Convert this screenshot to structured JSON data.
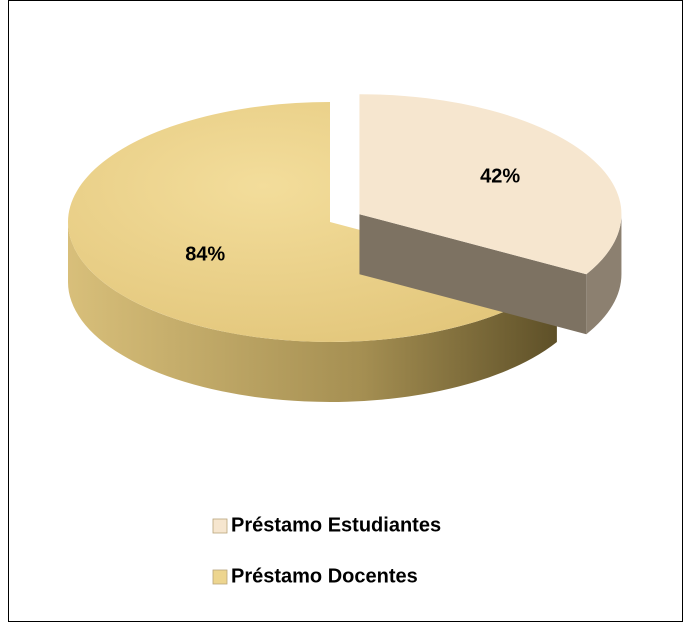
{
  "chart_data": {
    "type": "pie",
    "categories": [
      "Préstamo Estudiantes",
      "Préstamo Docentes"
    ],
    "values": [
      42,
      84
    ],
    "value_labels": [
      "42%",
      "84%"
    ],
    "colors": [
      "#f6e6cf",
      "#edd58f"
    ],
    "legend": "bottom"
  }
}
